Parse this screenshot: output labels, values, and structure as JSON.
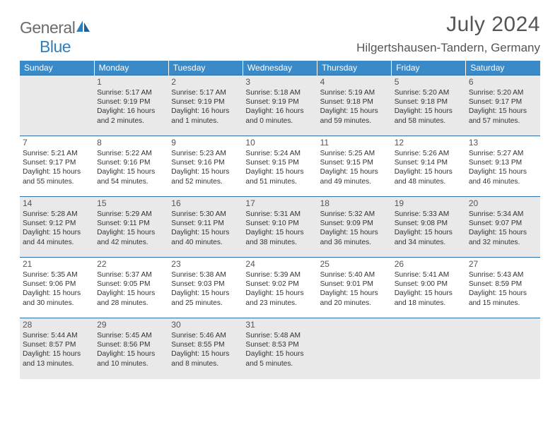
{
  "logo": {
    "word1": "General",
    "word2": "Blue"
  },
  "title": "July 2024",
  "location": "Hilgertshausen-Tandern, Germany",
  "colors": {
    "header_bg": "#3a8ac8",
    "row_border": "#2f6fa8",
    "shade_row": "#e9e9e9",
    "text": "#333333",
    "muted": "#555555"
  },
  "typography": {
    "body_pt": 10,
    "daynum_pt": 12,
    "header_pt": 12,
    "title_pt": 30,
    "location_pt": 17
  },
  "weekdays": [
    "Sunday",
    "Monday",
    "Tuesday",
    "Wednesday",
    "Thursday",
    "Friday",
    "Saturday"
  ],
  "weeks": [
    [
      null,
      {
        "n": "1",
        "sr": "5:17 AM",
        "ss": "9:19 PM",
        "dl": "16 hours and 2 minutes."
      },
      {
        "n": "2",
        "sr": "5:17 AM",
        "ss": "9:19 PM",
        "dl": "16 hours and 1 minutes."
      },
      {
        "n": "3",
        "sr": "5:18 AM",
        "ss": "9:19 PM",
        "dl": "16 hours and 0 minutes."
      },
      {
        "n": "4",
        "sr": "5:19 AM",
        "ss": "9:18 PM",
        "dl": "15 hours and 59 minutes."
      },
      {
        "n": "5",
        "sr": "5:20 AM",
        "ss": "9:18 PM",
        "dl": "15 hours and 58 minutes."
      },
      {
        "n": "6",
        "sr": "5:20 AM",
        "ss": "9:17 PM",
        "dl": "15 hours and 57 minutes."
      }
    ],
    [
      {
        "n": "7",
        "sr": "5:21 AM",
        "ss": "9:17 PM",
        "dl": "15 hours and 55 minutes."
      },
      {
        "n": "8",
        "sr": "5:22 AM",
        "ss": "9:16 PM",
        "dl": "15 hours and 54 minutes."
      },
      {
        "n": "9",
        "sr": "5:23 AM",
        "ss": "9:16 PM",
        "dl": "15 hours and 52 minutes."
      },
      {
        "n": "10",
        "sr": "5:24 AM",
        "ss": "9:15 PM",
        "dl": "15 hours and 51 minutes."
      },
      {
        "n": "11",
        "sr": "5:25 AM",
        "ss": "9:15 PM",
        "dl": "15 hours and 49 minutes."
      },
      {
        "n": "12",
        "sr": "5:26 AM",
        "ss": "9:14 PM",
        "dl": "15 hours and 48 minutes."
      },
      {
        "n": "13",
        "sr": "5:27 AM",
        "ss": "9:13 PM",
        "dl": "15 hours and 46 minutes."
      }
    ],
    [
      {
        "n": "14",
        "sr": "5:28 AM",
        "ss": "9:12 PM",
        "dl": "15 hours and 44 minutes."
      },
      {
        "n": "15",
        "sr": "5:29 AM",
        "ss": "9:11 PM",
        "dl": "15 hours and 42 minutes."
      },
      {
        "n": "16",
        "sr": "5:30 AM",
        "ss": "9:11 PM",
        "dl": "15 hours and 40 minutes."
      },
      {
        "n": "17",
        "sr": "5:31 AM",
        "ss": "9:10 PM",
        "dl": "15 hours and 38 minutes."
      },
      {
        "n": "18",
        "sr": "5:32 AM",
        "ss": "9:09 PM",
        "dl": "15 hours and 36 minutes."
      },
      {
        "n": "19",
        "sr": "5:33 AM",
        "ss": "9:08 PM",
        "dl": "15 hours and 34 minutes."
      },
      {
        "n": "20",
        "sr": "5:34 AM",
        "ss": "9:07 PM",
        "dl": "15 hours and 32 minutes."
      }
    ],
    [
      {
        "n": "21",
        "sr": "5:35 AM",
        "ss": "9:06 PM",
        "dl": "15 hours and 30 minutes."
      },
      {
        "n": "22",
        "sr": "5:37 AM",
        "ss": "9:05 PM",
        "dl": "15 hours and 28 minutes."
      },
      {
        "n": "23",
        "sr": "5:38 AM",
        "ss": "9:03 PM",
        "dl": "15 hours and 25 minutes."
      },
      {
        "n": "24",
        "sr": "5:39 AM",
        "ss": "9:02 PM",
        "dl": "15 hours and 23 minutes."
      },
      {
        "n": "25",
        "sr": "5:40 AM",
        "ss": "9:01 PM",
        "dl": "15 hours and 20 minutes."
      },
      {
        "n": "26",
        "sr": "5:41 AM",
        "ss": "9:00 PM",
        "dl": "15 hours and 18 minutes."
      },
      {
        "n": "27",
        "sr": "5:43 AM",
        "ss": "8:59 PM",
        "dl": "15 hours and 15 minutes."
      }
    ],
    [
      {
        "n": "28",
        "sr": "5:44 AM",
        "ss": "8:57 PM",
        "dl": "15 hours and 13 minutes."
      },
      {
        "n": "29",
        "sr": "5:45 AM",
        "ss": "8:56 PM",
        "dl": "15 hours and 10 minutes."
      },
      {
        "n": "30",
        "sr": "5:46 AM",
        "ss": "8:55 PM",
        "dl": "15 hours and 8 minutes."
      },
      {
        "n": "31",
        "sr": "5:48 AM",
        "ss": "8:53 PM",
        "dl": "15 hours and 5 minutes."
      },
      null,
      null,
      null
    ]
  ],
  "labels": {
    "sunrise": "Sunrise:",
    "sunset": "Sunset:",
    "daylight": "Daylight:"
  }
}
